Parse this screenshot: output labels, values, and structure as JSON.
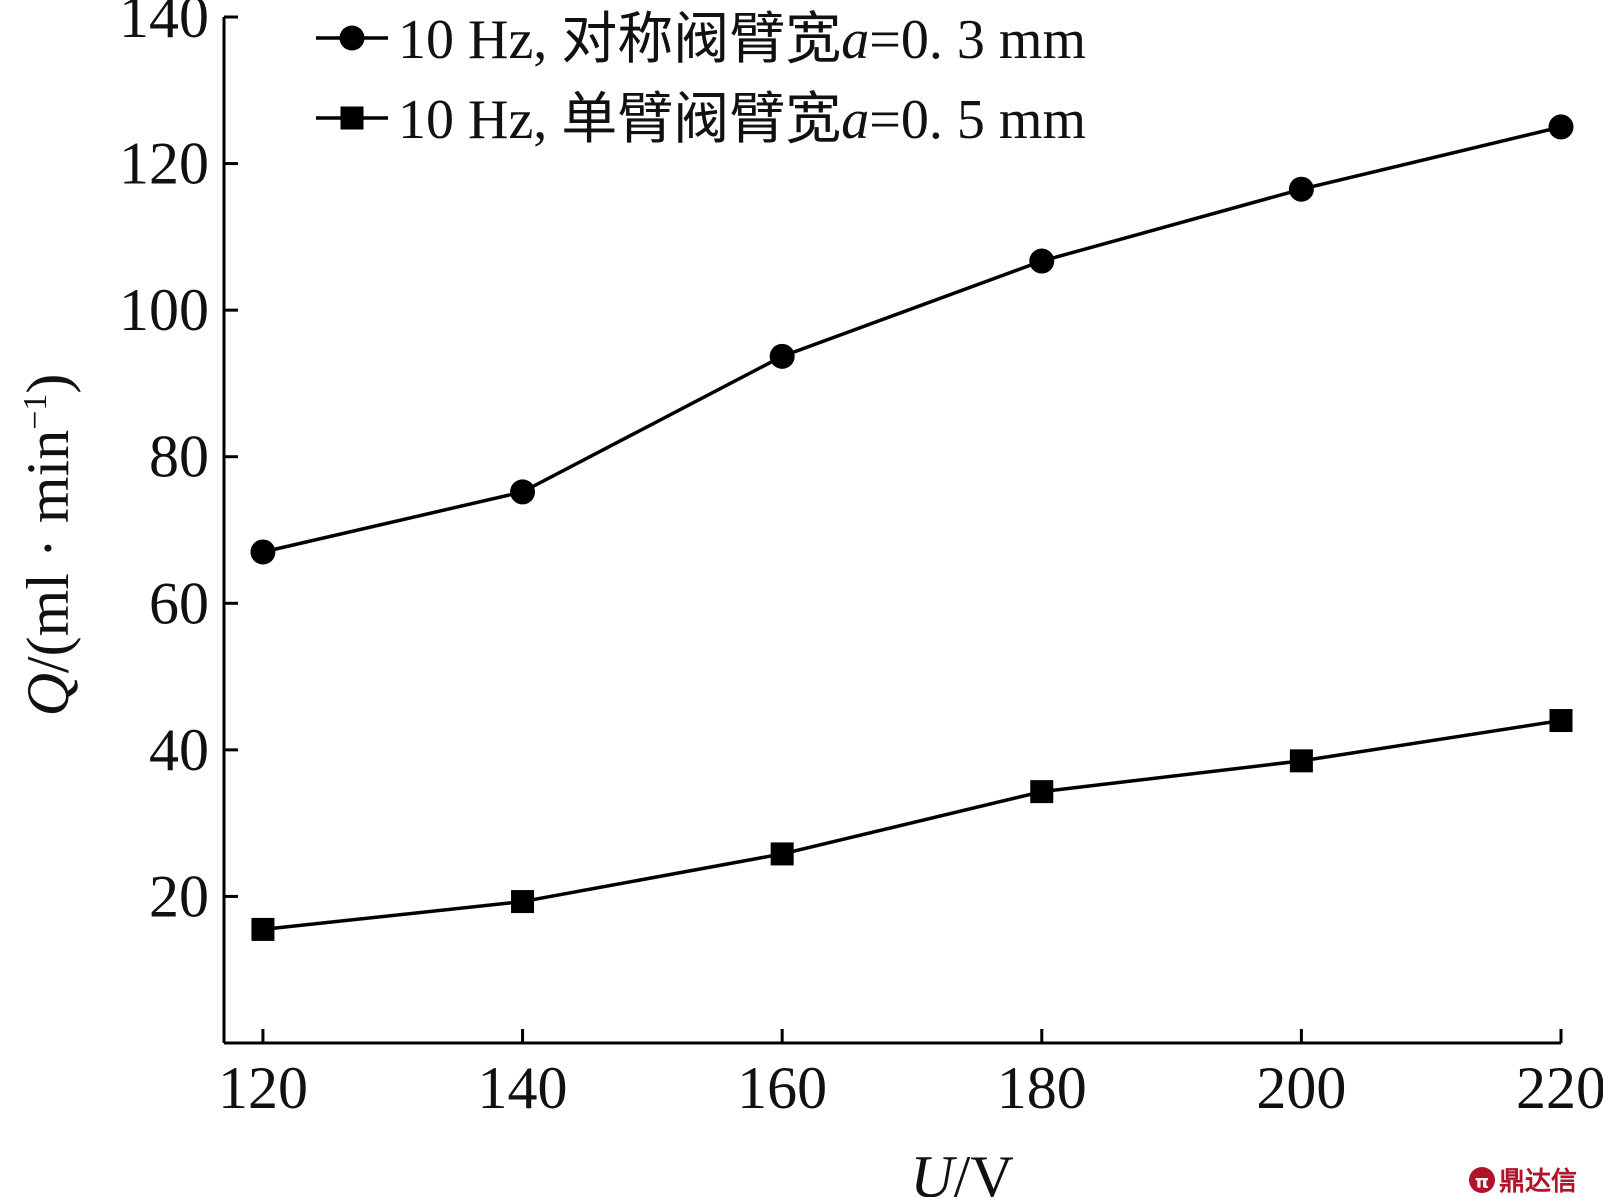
{
  "chart_data": {
    "type": "line",
    "x": [
      120,
      140,
      160,
      180,
      200,
      220
    ],
    "series": [
      {
        "name": "10 Hz, 对称阀臂宽a=0. 3 mm",
        "marker": "circle",
        "color": "#000000",
        "values": [
          67,
          75.2,
          93.7,
          106.7,
          116.5,
          125
        ]
      },
      {
        "name": "10 Hz, 单臂阀臂宽a=0. 5 mm",
        "marker": "square",
        "color": "#000000",
        "values": [
          15.5,
          19.3,
          25.8,
          34.3,
          38.5,
          44
        ]
      }
    ],
    "xlabel": "U/V",
    "ylabel": "Q/(ml · min⁻¹)",
    "xlim": [
      117,
      220
    ],
    "ylim": [
      0,
      140
    ],
    "xticks": [
      "120",
      "140",
      "160",
      "180",
      "200",
      "220"
    ],
    "yticks": [
      "20",
      "40",
      "60",
      "80",
      "100",
      "120",
      "140"
    ],
    "grid": false,
    "legend_position": "top-left"
  },
  "watermark": {
    "text": "鼎达信",
    "color": "#b0142a"
  }
}
